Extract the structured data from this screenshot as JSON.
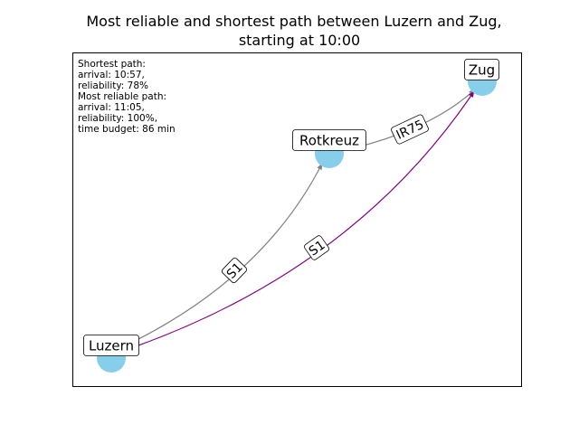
{
  "title_line1": "Most reliable and shortest path between Luzern and Zug,",
  "title_line2": "starting at 10:00",
  "info_lines": [
    "Shortest path:",
    "arrival: 10:57,",
    "reliability: 78%",
    "Most reliable path:",
    "arrival: 11:05,",
    "reliability: 100%,",
    "time budget: 86 min"
  ],
  "nodes": {
    "luzern": "Luzern",
    "rotkreuz": "Rotkreuz",
    "zug": "Zug"
  },
  "edges": {
    "luzern_rotkreuz": "S1",
    "rotkreuz_zug": "IR75",
    "luzern_zug": "S1"
  },
  "colors": {
    "node_fill": "#87ceeb",
    "edge_default": "#808080",
    "edge_highlight": "#800080"
  }
}
